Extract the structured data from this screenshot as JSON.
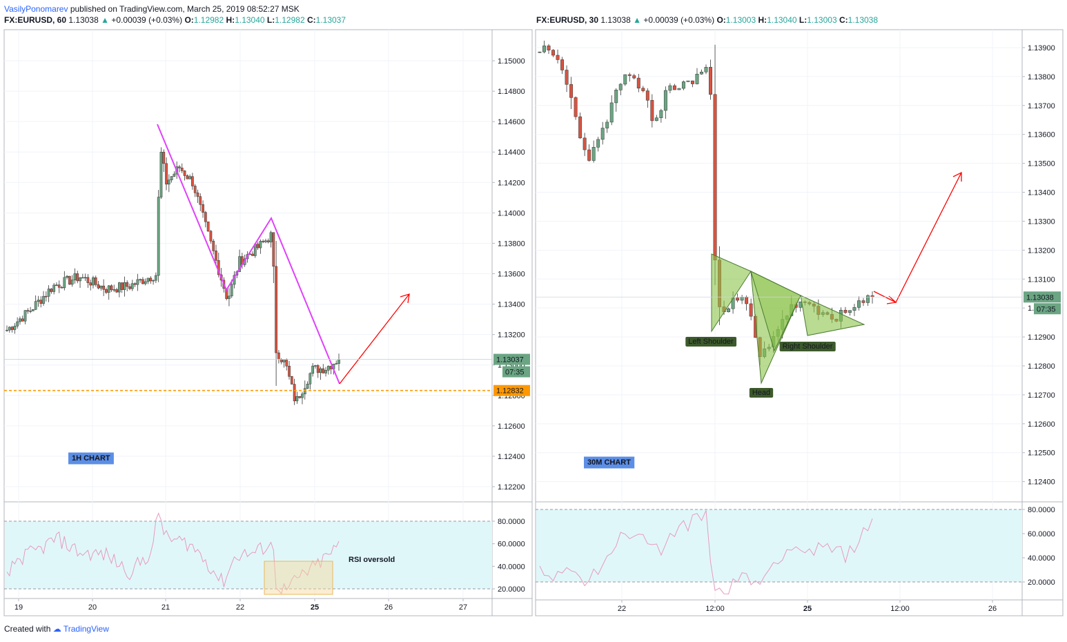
{
  "header": {
    "author": "VasilyPonomarev",
    "published_text": "published on TradingView.com, March 25, 2019 08:52:27 MSK"
  },
  "footer": {
    "created_with": "Created with",
    "brand": "TradingView"
  },
  "colors": {
    "up": "#6ba583",
    "down": "#d75442",
    "pattern": "#e040fb",
    "arrow": "#ff0000",
    "support": "#ff9800",
    "rsi_band": "#e0f7fa",
    "rsi_line": "#e69bbf",
    "hs_fill": "#8bc34a"
  },
  "charts": [
    {
      "id": "left",
      "symbol": "FX:EURUSD, 60",
      "last": "1.13038",
      "change": "+0.00039 (+0.03%)",
      "o_label": "O:",
      "o": "1.12982",
      "h_label": "H:",
      "h": "1.13040",
      "l_label": "L:",
      "l": "1.12982",
      "c_label": "C:",
      "c": "1.13037",
      "chart_label": "1H CHART",
      "rsi_label": "RSI oversold",
      "price_tag": "1.13037",
      "timer_tag": "07:35",
      "support_tag": "1.12832",
      "chart_data": {
        "type": "candlestick",
        "yticks": [
          "1.15000",
          "1.14800",
          "1.14600",
          "1.14400",
          "1.14200",
          "1.14000",
          "1.13800",
          "1.13600",
          "1.13400",
          "1.13200",
          "1.13000",
          "1.12800",
          "1.12600",
          "1.12400",
          "1.12200"
        ],
        "ylim": [
          1.121,
          1.1515
        ],
        "xticks": [
          "19",
          "20",
          "21",
          "22",
          "25",
          "26",
          "27"
        ],
        "rsi_ticks": [
          "80.0000",
          "60.0000",
          "40.0000",
          "20.0000"
        ],
        "support_level": 1.12832
      }
    },
    {
      "id": "right",
      "symbol": "FX:EURUSD, 30",
      "last": "1.13038",
      "change": "+0.00039 (+0.03%)",
      "o_label": "O:",
      "o": "1.13003",
      "h_label": "H:",
      "h": "1.13040",
      "l_label": "L:",
      "l": "1.13003",
      "c_label": "C:",
      "c": "1.13038",
      "chart_label": "30M CHART",
      "price_tag": "1.13038",
      "timer_tag": "07:35",
      "labels": {
        "left_shoulder": "Left Shoulder",
        "head": "Head",
        "right_shoulder": "Right Shoulder"
      },
      "chart_data": {
        "type": "candlestick",
        "yticks": [
          "1.13900",
          "1.13800",
          "1.13700",
          "1.13600",
          "1.13500",
          "1.13400",
          "1.13300",
          "1.13200",
          "1.13100",
          "1.13000",
          "1.12900",
          "1.12800",
          "1.12700",
          "1.12600",
          "1.12500",
          "1.12400"
        ],
        "ylim": [
          1.1233,
          1.1395
        ],
        "xticks": [
          "22",
          "12:00",
          "25",
          "12:00",
          "26"
        ],
        "rsi_ticks": [
          "80.0000",
          "60.0000",
          "40.0000",
          "20.0000"
        ]
      }
    }
  ]
}
